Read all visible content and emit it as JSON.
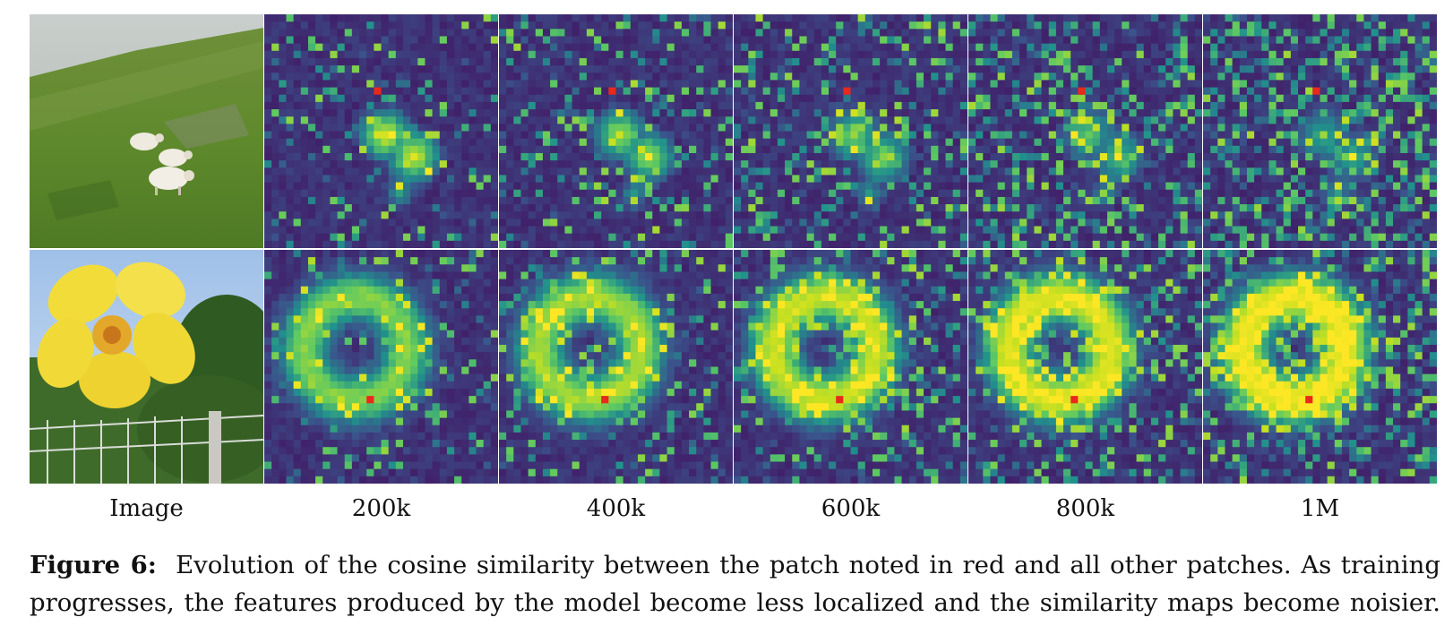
{
  "figure": {
    "column_labels": [
      "Image",
      "200k",
      "400k",
      "600k",
      "800k",
      "1M"
    ],
    "rows": [
      {
        "image_subject": "sheep on a grassy hillside",
        "anchor_patch": "red"
      },
      {
        "image_subject": "yellow flower in front of a fence",
        "anchor_patch": "red"
      }
    ],
    "caption_label": "Figure 6:",
    "caption_text": "Evolution of the cosine similarity between the patch noted in red and all other patches. As training progresses, the features produced by the model become less localized and the similarity maps become noisier."
  },
  "colors": {
    "map_low": "#440154",
    "map_mid": "#21918c",
    "map_high": "#c7e020",
    "anchor": "#e8291c"
  }
}
